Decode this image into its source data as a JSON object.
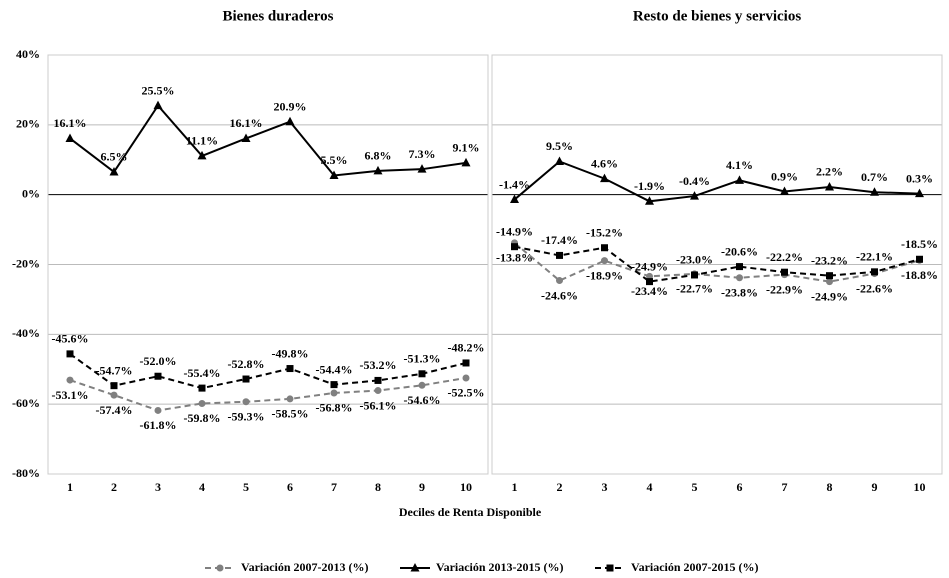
{
  "chart_data": [
    {
      "type": "line",
      "title": "Bienes duraderos",
      "xlabel": "Deciles de Renta Disponible",
      "categories": [
        "1",
        "2",
        "3",
        "4",
        "5",
        "6",
        "7",
        "8",
        "9",
        "10"
      ],
      "ylim": [
        -80,
        40
      ],
      "yticks": [
        {
          "value": 40,
          "label": "40%"
        },
        {
          "value": 20,
          "label": "20%"
        },
        {
          "value": 0,
          "label": "0%"
        },
        {
          "value": -20,
          "label": "-20%"
        },
        {
          "value": -40,
          "label": "-40%"
        },
        {
          "value": -60,
          "label": "-60%"
        },
        {
          "value": -80,
          "label": "-80%"
        }
      ],
      "grid": true,
      "series": [
        {
          "name": "Variación 2007-2013 (%)",
          "color": "#808080",
          "dashed": true,
          "marker": "circle",
          "values": [
            -53.1,
            -57.4,
            -61.8,
            -59.8,
            -59.3,
            -58.5,
            -56.8,
            -56.1,
            -54.6,
            -52.5
          ],
          "value_labels": [
            "-53.1%",
            "-57.4%",
            "-61.8%",
            "-59.8%",
            "-59.3%",
            "-58.5%",
            "-56.8%",
            "-56.1%",
            "-54.6%",
            "-52.5%"
          ]
        },
        {
          "name": "Variación 2013-2015 (%)",
          "color": "#000000",
          "dashed": false,
          "marker": "triangle",
          "values": [
            16.1,
            6.5,
            25.5,
            11.1,
            16.1,
            20.9,
            5.5,
            6.8,
            7.3,
            9.1
          ],
          "value_labels": [
            "16.1%",
            "6.5%",
            "25.5%",
            "11.1%",
            "16.1%",
            "20.9%",
            "5.5%",
            "6.8%",
            "7.3%",
            "9.1%"
          ]
        },
        {
          "name": "Variación 2007-2015 (%)",
          "color": "#000000",
          "dashed": true,
          "marker": "square",
          "values": [
            -45.6,
            -54.7,
            -52.0,
            -55.4,
            -52.8,
            -49.8,
            -54.4,
            -53.2,
            -51.3,
            -48.2
          ],
          "value_labels": [
            "-45.6%",
            "-54.7%",
            "-52.0%",
            "-55.4%",
            "-52.8%",
            "-49.8%",
            "-54.4%",
            "-53.2%",
            "-51.3%",
            "-48.2%"
          ]
        }
      ]
    },
    {
      "type": "line",
      "title": "Resto de bienes y servicios",
      "categories": [
        "1",
        "2",
        "3",
        "4",
        "5",
        "6",
        "7",
        "8",
        "9",
        "10"
      ],
      "ylim": [
        -80,
        40
      ],
      "grid": true,
      "series": [
        {
          "name": "Variación 2007-2013 (%)",
          "color": "#808080",
          "dashed": true,
          "marker": "circle",
          "values": [
            -13.8,
            -24.6,
            -18.9,
            -23.4,
            -22.7,
            -23.8,
            -22.9,
            -24.9,
            -22.6,
            -18.8
          ],
          "value_labels": [
            "-13.8%",
            "-24.6%",
            "-18.9%",
            "-23.4%",
            "-22.7%",
            "-23.8%",
            "-22.9%",
            "-24.9%",
            "-22.6%",
            "-18.8%"
          ]
        },
        {
          "name": "Variación 2013-2015 (%)",
          "color": "#000000",
          "dashed": false,
          "marker": "triangle",
          "values": [
            -1.4,
            9.5,
            4.6,
            -1.9,
            -0.4,
            4.1,
            0.9,
            2.2,
            0.7,
            0.3
          ],
          "value_labels": [
            "-1.4%",
            "9.5%",
            "4.6%",
            "-1.9%",
            "-0.4%",
            "4.1%",
            "0.9%",
            "2.2%",
            "0.7%",
            "0.3%"
          ]
        },
        {
          "name": "Variación 2007-2015 (%)",
          "color": "#000000",
          "dashed": true,
          "marker": "square",
          "values": [
            -14.9,
            -17.4,
            -15.2,
            -24.9,
            -23.0,
            -20.6,
            -22.2,
            -23.2,
            -22.1,
            -18.5
          ],
          "value_labels": [
            "-14.9%",
            "-17.4%",
            "-15.2%",
            "-24.9%",
            "-23.0%",
            "-20.6%",
            "-22.2%",
            "-23.2%",
            "-22.1%",
            "-18.5%"
          ]
        }
      ]
    }
  ]
}
